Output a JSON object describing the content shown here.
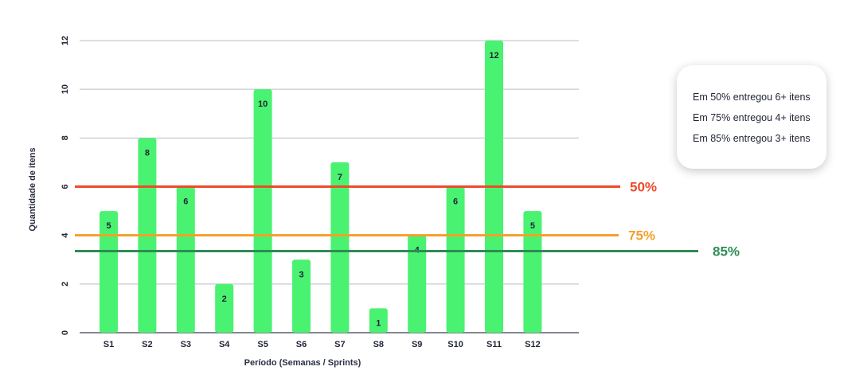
{
  "chart_data": {
    "type": "bar",
    "categories": [
      "S1",
      "S2",
      "S3",
      "S4",
      "S5",
      "S6",
      "S7",
      "S8",
      "S9",
      "S10",
      "S11",
      "S12"
    ],
    "values": [
      5,
      8,
      6,
      2,
      10,
      3,
      7,
      1,
      4,
      6,
      12,
      5
    ],
    "series": [
      {
        "values": [
          5,
          8,
          6,
          2,
          10,
          3,
          7,
          1,
          4,
          6,
          12,
          5
        ]
      }
    ],
    "xlabel": "Período (Semanas / Sprints)",
    "ylabel": "Quantidade de itens",
    "ylim": [
      0,
      12
    ],
    "yticks": [
      "0",
      "2",
      "4",
      "6",
      "8",
      "10",
      "12"
    ],
    "grid": true,
    "bar_color": "#4af271",
    "reference_lines": [
      {
        "label": "50%",
        "value": 6.0,
        "color": "#ee4a2b"
      },
      {
        "label": "75%",
        "value": 4.0,
        "color": "#f59f2a"
      },
      {
        "label": "85%",
        "value": 3.35,
        "color": "#2e8b57"
      }
    ]
  },
  "callout": {
    "lines": [
      "Em 50% entregou 6+ itens",
      "Em 75% entregou 4+ itens",
      "Em 85% entregou 3+ itens"
    ]
  }
}
